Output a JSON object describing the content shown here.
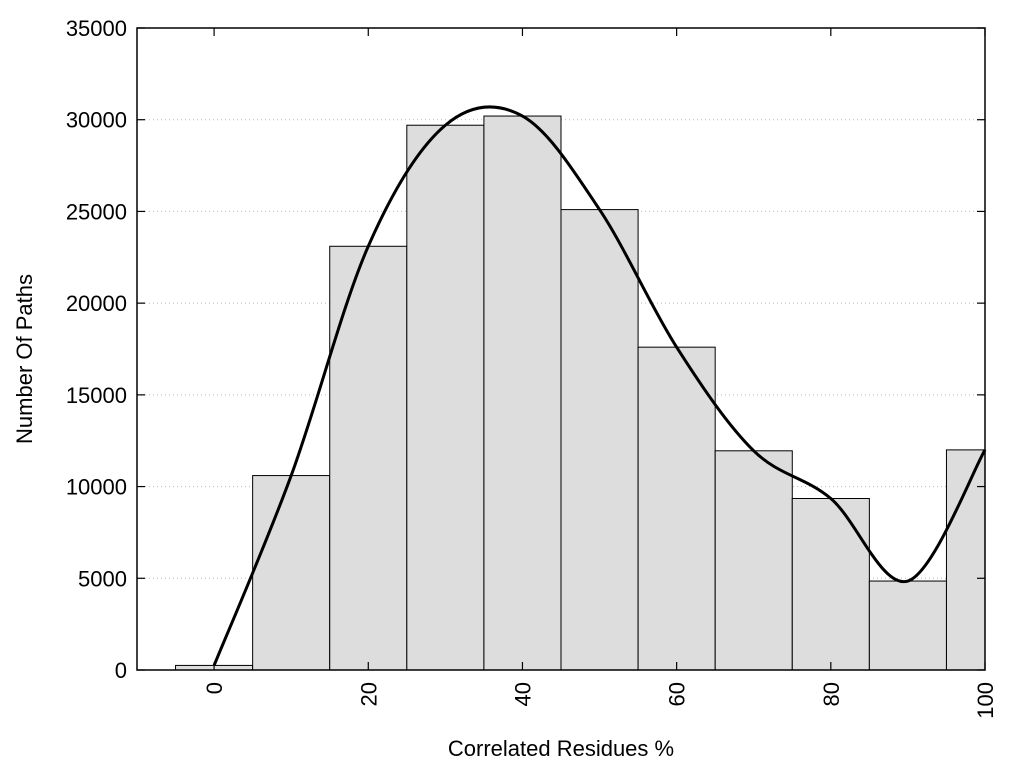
{
  "chart_data": {
    "type": "bar",
    "title": "",
    "xlabel": "Correlated Residues %",
    "ylabel": "Number Of Paths",
    "x_centers": [
      0,
      10,
      20,
      30,
      40,
      50,
      60,
      70,
      80,
      90,
      100
    ],
    "bin_width": 10,
    "values": [
      250,
      10600,
      23100,
      29700,
      30200,
      25100,
      17600,
      11950,
      9350,
      4850,
      12000
    ],
    "xlim": [
      -10,
      100
    ],
    "ylim": [
      0,
      35000
    ],
    "x_ticks": [
      0,
      20,
      40,
      60,
      80,
      100
    ],
    "y_ticks": [
      0,
      5000,
      10000,
      15000,
      20000,
      25000,
      30000,
      35000
    ],
    "grid": "horizontal dotted",
    "bar_color": "#dddddd",
    "bar_edge_color": "#000000",
    "curve": {
      "type": "line",
      "smooth": true,
      "color": "#000000",
      "x": [
        0,
        10,
        20,
        30,
        40,
        50,
        60,
        70,
        80,
        90,
        100
      ],
      "y": [
        250,
        10600,
        23100,
        29700,
        30200,
        25100,
        17600,
        11950,
        9350,
        4850,
        12000
      ]
    }
  }
}
